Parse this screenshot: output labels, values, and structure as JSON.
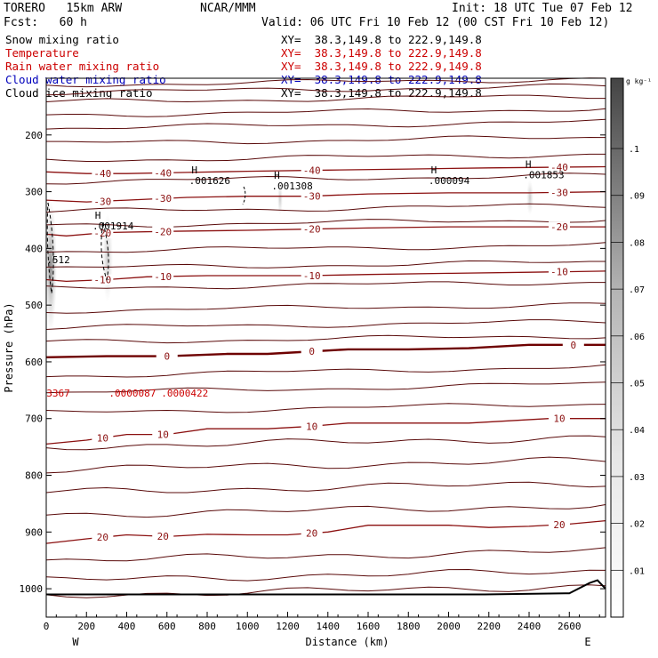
{
  "header": {
    "model": "TORERO   15km ARW",
    "org": "NCAR/MMM",
    "init": "Init: 18 UTC Tue 07 Feb 12",
    "fcst": "Fcst:   60 h",
    "valid": "Valid: 06 UTC Fri 10 Feb 12 (00 CST Fri 10 Feb 12)"
  },
  "fields": [
    {
      "name": "Snow mixing ratio",
      "xy": "XY=  38.3,149.8 to 222.9,149.8",
      "color": "#000000"
    },
    {
      "name": "Temperature",
      "xy": "XY=  38.3,149.8 to 222.9,149.8",
      "color": "#cc0000"
    },
    {
      "name": "Rain water mixing ratio",
      "xy": "XY=  38.3,149.8 to 222.9,149.8",
      "color": "#cc0000"
    },
    {
      "name": "Cloud water mixing ratio",
      "xy": "XY=  38.3,149.8 to 222.9,149.8",
      "color": "#0000bb"
    },
    {
      "name": "Cloud ice mixing ratio",
      "xy": "XY=  38.3,149.8 to 222.9,149.8",
      "color": "#000000"
    }
  ],
  "chart_data": {
    "type": "contour-cross-section",
    "xlabel": "Distance (km)",
    "ylabel": "Pressure (hPa)",
    "xlim": [
      0,
      2780
    ],
    "ylim": [
      1050,
      100
    ],
    "xticks": [
      0,
      200,
      400,
      600,
      800,
      1000,
      1200,
      1400,
      1600,
      1800,
      2000,
      2200,
      2400,
      2600
    ],
    "yticks": [
      200,
      300,
      400,
      500,
      600,
      700,
      800,
      900,
      1000
    ],
    "left_end": "W",
    "right_end": "E",
    "colorbar": {
      "unit": "g kg⁻¹",
      "ticks": [
        ".01",
        ".02",
        ".03",
        ".04",
        ".05",
        ".06",
        ".07",
        ".08",
        ".09",
        ".1"
      ],
      "range": [
        0,
        0.115
      ]
    },
    "temperature_contours": [
      {
        "value": -40,
        "label": "-40",
        "points": [
          [
            0,
            265
          ],
          [
            200,
            268
          ],
          [
            400,
            268
          ],
          [
            700,
            266
          ],
          [
            1000,
            264
          ],
          [
            1400,
            262
          ],
          [
            1800,
            260
          ],
          [
            2200,
            258
          ],
          [
            2780,
            256
          ]
        ]
      },
      {
        "value": -30,
        "label": "-30",
        "points": [
          [
            0,
            315
          ],
          [
            200,
            318
          ],
          [
            400,
            315
          ],
          [
            700,
            310
          ],
          [
            1000,
            308
          ],
          [
            1300,
            308
          ],
          [
            1600,
            304
          ],
          [
            2000,
            302
          ],
          [
            2400,
            302
          ],
          [
            2780,
            300
          ]
        ]
      },
      {
        "value": -20,
        "label": "-20",
        "points": [
          [
            0,
            375
          ],
          [
            100,
            378
          ],
          [
            300,
            372
          ],
          [
            600,
            370
          ],
          [
            1000,
            368
          ],
          [
            1300,
            366
          ],
          [
            1600,
            364
          ],
          [
            2000,
            362
          ],
          [
            2400,
            362
          ],
          [
            2780,
            362
          ]
        ]
      },
      {
        "value": -10,
        "label": "-10",
        "points": [
          [
            0,
            455
          ],
          [
            100,
            458
          ],
          [
            300,
            455
          ],
          [
            500,
            450
          ],
          [
            800,
            448
          ],
          [
            1100,
            448
          ],
          [
            1300,
            448
          ],
          [
            1600,
            446
          ],
          [
            2000,
            444
          ],
          [
            2400,
            442
          ],
          [
            2780,
            440
          ]
        ]
      },
      {
        "value": 0,
        "label": "0",
        "points": [
          [
            0,
            592
          ],
          [
            300,
            590
          ],
          [
            600,
            590
          ],
          [
            900,
            586
          ],
          [
            1100,
            586
          ],
          [
            1300,
            582
          ],
          [
            1500,
            578
          ],
          [
            1800,
            578
          ],
          [
            2100,
            576
          ],
          [
            2400,
            570
          ],
          [
            2780,
            570
          ]
        ]
      },
      {
        "value": 10,
        "label": "10",
        "points": [
          [
            0,
            745
          ],
          [
            200,
            738
          ],
          [
            400,
            728
          ],
          [
            600,
            728
          ],
          [
            800,
            718
          ],
          [
            1100,
            718
          ],
          [
            1300,
            714
          ],
          [
            1500,
            708
          ],
          [
            1800,
            708
          ],
          [
            2100,
            708
          ],
          [
            2500,
            700
          ],
          [
            2780,
            700
          ]
        ]
      },
      {
        "value": 20,
        "label": "20",
        "points": [
          [
            0,
            920
          ],
          [
            200,
            912
          ],
          [
            400,
            905
          ],
          [
            600,
            908
          ],
          [
            800,
            904
          ],
          [
            1000,
            905
          ],
          [
            1200,
            905
          ],
          [
            1400,
            900
          ],
          [
            1600,
            888
          ],
          [
            1800,
            888
          ],
          [
            2000,
            888
          ],
          [
            2200,
            892
          ],
          [
            2400,
            890
          ],
          [
            2600,
            886
          ],
          [
            2780,
            880
          ]
        ]
      }
    ],
    "maxima_labels": [
      {
        "text": "H .001626",
        "x": 710,
        "p": 280,
        "field": "Cloud ice mixing ratio"
      },
      {
        "text": "H .001308",
        "x": 1120,
        "p": 290,
        "field": "Cloud ice mixing ratio"
      },
      {
        "text": "H .000094",
        "x": 1900,
        "p": 280,
        "field": "Cloud ice mixing ratio"
      },
      {
        "text": "H .001853",
        "x": 2370,
        "p": 270,
        "field": "Cloud ice mixing ratio"
      },
      {
        "text": "H .001914",
        "x": 230,
        "p": 360,
        "field": "Cloud ice mixing ratio"
      },
      {
        "text": ".512",
        "x": 10,
        "p": 420,
        "field": "Snow mixing ratio"
      },
      {
        "text": ".0000087",
        "x": 320,
        "p": 655,
        "field": "Rain water mixing ratio"
      },
      {
        "text": ".0000422",
        "x": 580,
        "p": 655,
        "field": "Rain water mixing ratio"
      },
      {
        "text": "3367",
        "x": 10,
        "p": 655,
        "field": "Rain water mixing ratio"
      }
    ],
    "terrain": "black line near 1010 hPa rising at east end"
  }
}
